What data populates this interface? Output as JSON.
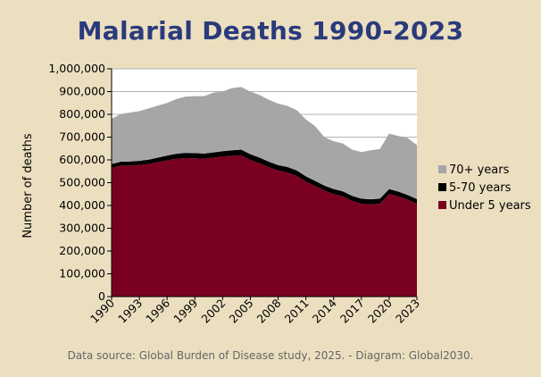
{
  "chart_data": {
    "type": "area",
    "stacked": true,
    "title": "Malarial Deaths 1990-2023",
    "ylabel": "Number of deaths",
    "xlabel": "",
    "source": "Data source: Global Burden of Disease study, 2025. - Diagram: Global2030.",
    "ylim": [
      0,
      1000000
    ],
    "ytick_labels": [
      "0",
      "100,000",
      "200,000",
      "300,000",
      "400,000",
      "500,000",
      "600,000",
      "700,000",
      "800,000",
      "900,000",
      "1,000,000"
    ],
    "xtick_labels": [
      "1990",
      "1993",
      "1996",
      "1999",
      "2002",
      "2005",
      "2008",
      "2011",
      "2014",
      "2017",
      "2020",
      "2023"
    ],
    "legend_position": "right",
    "x": [
      1990,
      1991,
      1992,
      1993,
      1994,
      1995,
      1996,
      1997,
      1998,
      1999,
      2000,
      2001,
      2002,
      2003,
      2004,
      2005,
      2006,
      2007,
      2008,
      2009,
      2010,
      2011,
      2012,
      2013,
      2014,
      2015,
      2016,
      2017,
      2018,
      2019,
      2020,
      2021,
      2022,
      2023
    ],
    "series": [
      {
        "name": "Under 5 years",
        "color": "#7a0020",
        "values": [
          565000,
          575000,
          575000,
          578000,
          582000,
          590000,
          598000,
          605000,
          608000,
          607000,
          605000,
          610000,
          615000,
          618000,
          620000,
          600000,
          585000,
          568000,
          553000,
          545000,
          530000,
          505000,
          485000,
          465000,
          450000,
          440000,
          420000,
          408000,
          405000,
          408000,
          450000,
          440000,
          425000,
          408000
        ]
      },
      {
        "name": "5-70 years",
        "color": "#000000",
        "values": [
          17000,
          17000,
          18000,
          18000,
          19000,
          20000,
          21000,
          22000,
          23000,
          23000,
          23000,
          23000,
          23000,
          24000,
          25000,
          25000,
          25000,
          24000,
          24000,
          24000,
          24000,
          23000,
          23000,
          22000,
          22000,
          22000,
          22000,
          22000,
          22000,
          22000,
          22000,
          21000,
          21000,
          20000
        ]
      },
      {
        "name": "70+ years",
        "color": "#a6a6a6",
        "values": [
          198000,
          210000,
          215000,
          218000,
          225000,
          228000,
          231000,
          240000,
          247000,
          250000,
          252000,
          262000,
          262000,
          273000,
          275000,
          275000,
          275000,
          272000,
          270000,
          268000,
          265000,
          250000,
          240000,
          213000,
          210000,
          210000,
          203000,
          205000,
          215000,
          218000,
          243000,
          244000,
          250000,
          237000
        ]
      }
    ]
  }
}
